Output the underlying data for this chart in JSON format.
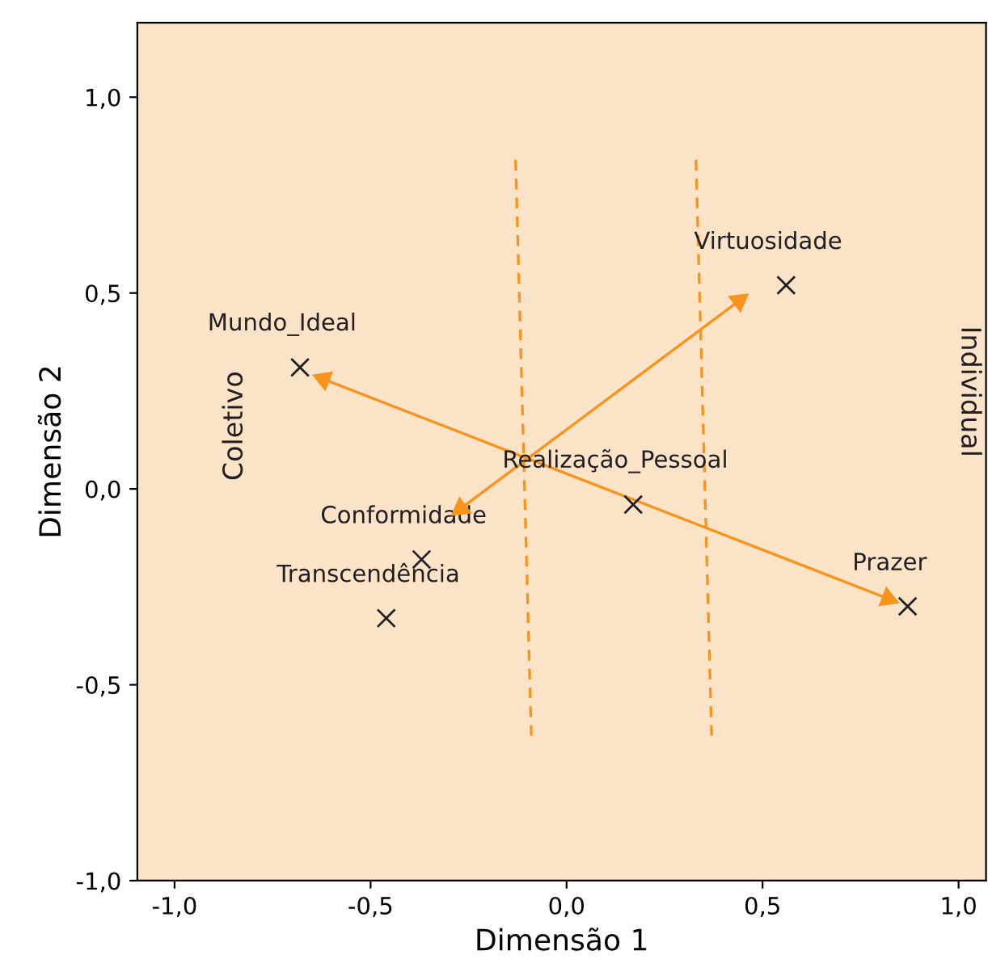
{
  "chart_data": {
    "type": "scatter",
    "xlabel": "Dimensão 1",
    "ylabel": "Dimensão 2",
    "xlim": [
      -1.095,
      1.07
    ],
    "ylim": [
      -1.0,
      1.19
    ],
    "xticks": [
      {
        "value": -1.0,
        "label": "-1,0"
      },
      {
        "value": -0.5,
        "label": "-0,5"
      },
      {
        "value": 0.0,
        "label": "0,0"
      },
      {
        "value": 0.5,
        "label": "0,5"
      },
      {
        "value": 1.0,
        "label": "1,0"
      }
    ],
    "yticks": [
      {
        "value": -1.0,
        "label": "-1,0"
      },
      {
        "value": -0.5,
        "label": "-0,5"
      },
      {
        "value": 0.0,
        "label": "0,0"
      },
      {
        "value": 0.5,
        "label": "0,5"
      },
      {
        "value": 1.0,
        "label": "1,0"
      }
    ],
    "grid": false,
    "series": [
      {
        "color": "#231f20",
        "marker": "cross",
        "x": [
          -0.68,
          0.56,
          0.17,
          -0.37,
          -0.46,
          0.87
        ],
        "values": [
          0.31,
          0.52,
          -0.04,
          -0.18,
          -0.33,
          -0.3
        ]
      },
      {
        "type": "line",
        "color": "#f7941d",
        "marker": "triangle",
        "line_style": "solid",
        "x": [
          -0.62,
          0.82
        ],
        "values": [
          0.28,
          -0.28
        ]
      },
      {
        "type": "line",
        "color": "#f7941d",
        "marker": "triangle",
        "line_style": "solid",
        "x": [
          -0.27,
          0.44
        ],
        "values": [
          -0.05,
          0.48
        ]
      },
      {
        "type": "line",
        "color": "#f7941d",
        "marker": "none",
        "line_style": "dashed",
        "x": [
          -0.13,
          -0.09
        ],
        "values": [
          0.84,
          -0.63
        ]
      },
      {
        "type": "line",
        "color": "#f7941d",
        "marker": "none",
        "line_style": "dashed",
        "x": [
          0.33,
          0.37
        ],
        "values": [
          0.84,
          -0.63
        ]
      }
    ],
    "annotations": [
      {
        "text": "Mundo_Ideal",
        "x": -0.68,
        "y": 0.31
      },
      {
        "text": "Virtuosidade",
        "x": 0.56,
        "y": 0.52
      },
      {
        "text": "Realização_Pessoal",
        "x": 0.17,
        "y": -0.04
      },
      {
        "text": "Conformidade",
        "x": -0.37,
        "y": -0.18
      },
      {
        "text": "Transcendência",
        "x": -0.46,
        "y": -0.33
      },
      {
        "text": "Prazer",
        "x": 0.87,
        "y": -0.3
      },
      "Coletivo",
      "Individual"
    ]
  }
}
